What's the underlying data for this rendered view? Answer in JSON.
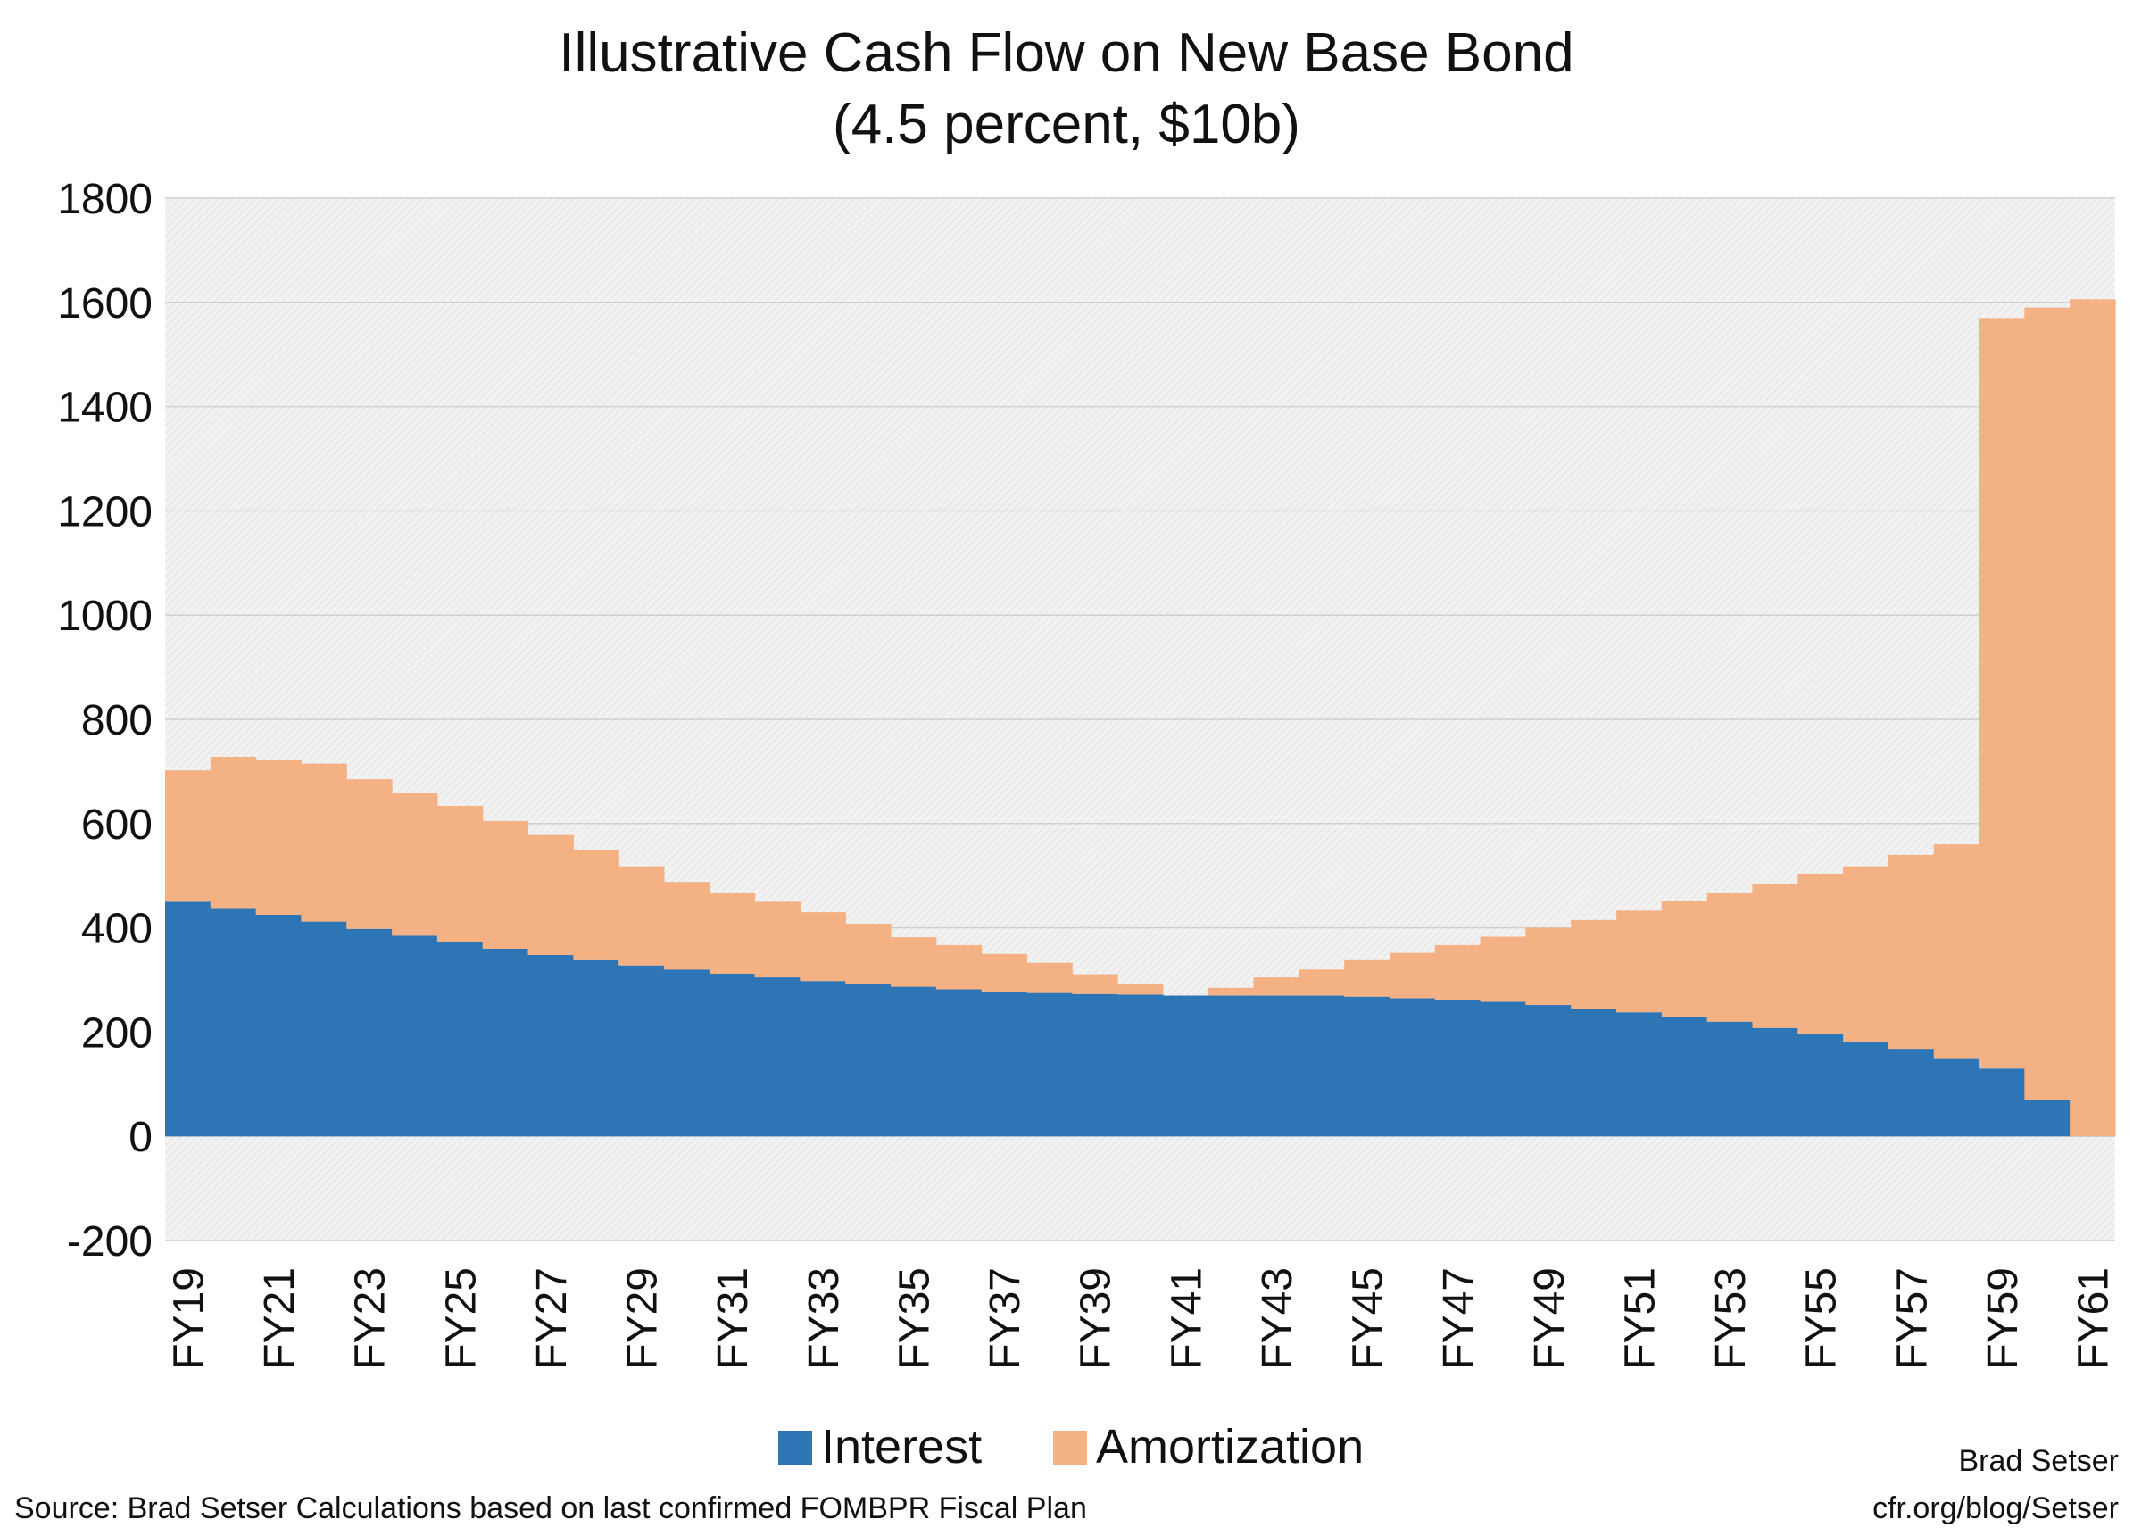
{
  "chart_data": {
    "type": "bar",
    "stacked": true,
    "title": "Illustrative Cash Flow on New Base Bond",
    "subtitle": "(4.5 percent, $10b)",
    "categories": [
      "FY19",
      "FY20",
      "FY21",
      "FY22",
      "FY23",
      "FY24",
      "FY25",
      "FY26",
      "FY27",
      "FY28",
      "FY29",
      "FY30",
      "FY31",
      "FY32",
      "FY33",
      "FY34",
      "FY35",
      "FY36",
      "FY37",
      "FY38",
      "FY39",
      "FY40",
      "FY41",
      "FY42",
      "FY43",
      "FY44",
      "FY45",
      "FY46",
      "FY47",
      "FY48",
      "FY49",
      "FY50",
      "FY51",
      "FY52",
      "FY53",
      "FY54",
      "FY55",
      "FY56",
      "FY57",
      "FY58",
      "FY59",
      "FY60",
      "FY61"
    ],
    "tick_labels": [
      "FY19",
      "FY21",
      "FY23",
      "FY25",
      "FY27",
      "FY29",
      "FY31",
      "FY33",
      "FY35",
      "FY37",
      "FY39",
      "FY41",
      "FY43",
      "FY45",
      "FY47",
      "FY49",
      "FY51",
      "FY53",
      "FY55",
      "FY57",
      "FY59",
      "FY61"
    ],
    "series": [
      {
        "name": "Interest",
        "color": "#2e75b6",
        "values": [
          450,
          438,
          425,
          412,
          398,
          385,
          372,
          360,
          348,
          338,
          328,
          320,
          312,
          305,
          298,
          292,
          287,
          282,
          278,
          275,
          273,
          272,
          270,
          270,
          270,
          270,
          268,
          265,
          262,
          258,
          252,
          245,
          238,
          230,
          220,
          208,
          196,
          182,
          168,
          150,
          130,
          70,
          0
        ]
      },
      {
        "name": "Amortization",
        "color": "#f4b183",
        "values": [
          252,
          290,
          298,
          303,
          287,
          273,
          262,
          245,
          230,
          212,
          190,
          168,
          156,
          145,
          132,
          116,
          95,
          85,
          72,
          58,
          38,
          20,
          0,
          15,
          35,
          50,
          70,
          87,
          105,
          125,
          148,
          170,
          195,
          222,
          248,
          276,
          308,
          336,
          372,
          410,
          1440,
          1520,
          1606
        ]
      }
    ],
    "y_ticks": [
      "1800",
      "1600",
      "1400",
      "1200",
      "1000",
      "800",
      "600",
      "400",
      "200",
      "0",
      "-200"
    ],
    "ylim": [
      -200,
      1800
    ],
    "grid": "horizontal",
    "legend_position": "bottom"
  },
  "footer": {
    "source": "Source: Brad Setser Calculations based on last confirmed FOMBPR Fiscal Plan",
    "author": "Brad Setser",
    "url": "cfr.org/blog/Setser"
  }
}
